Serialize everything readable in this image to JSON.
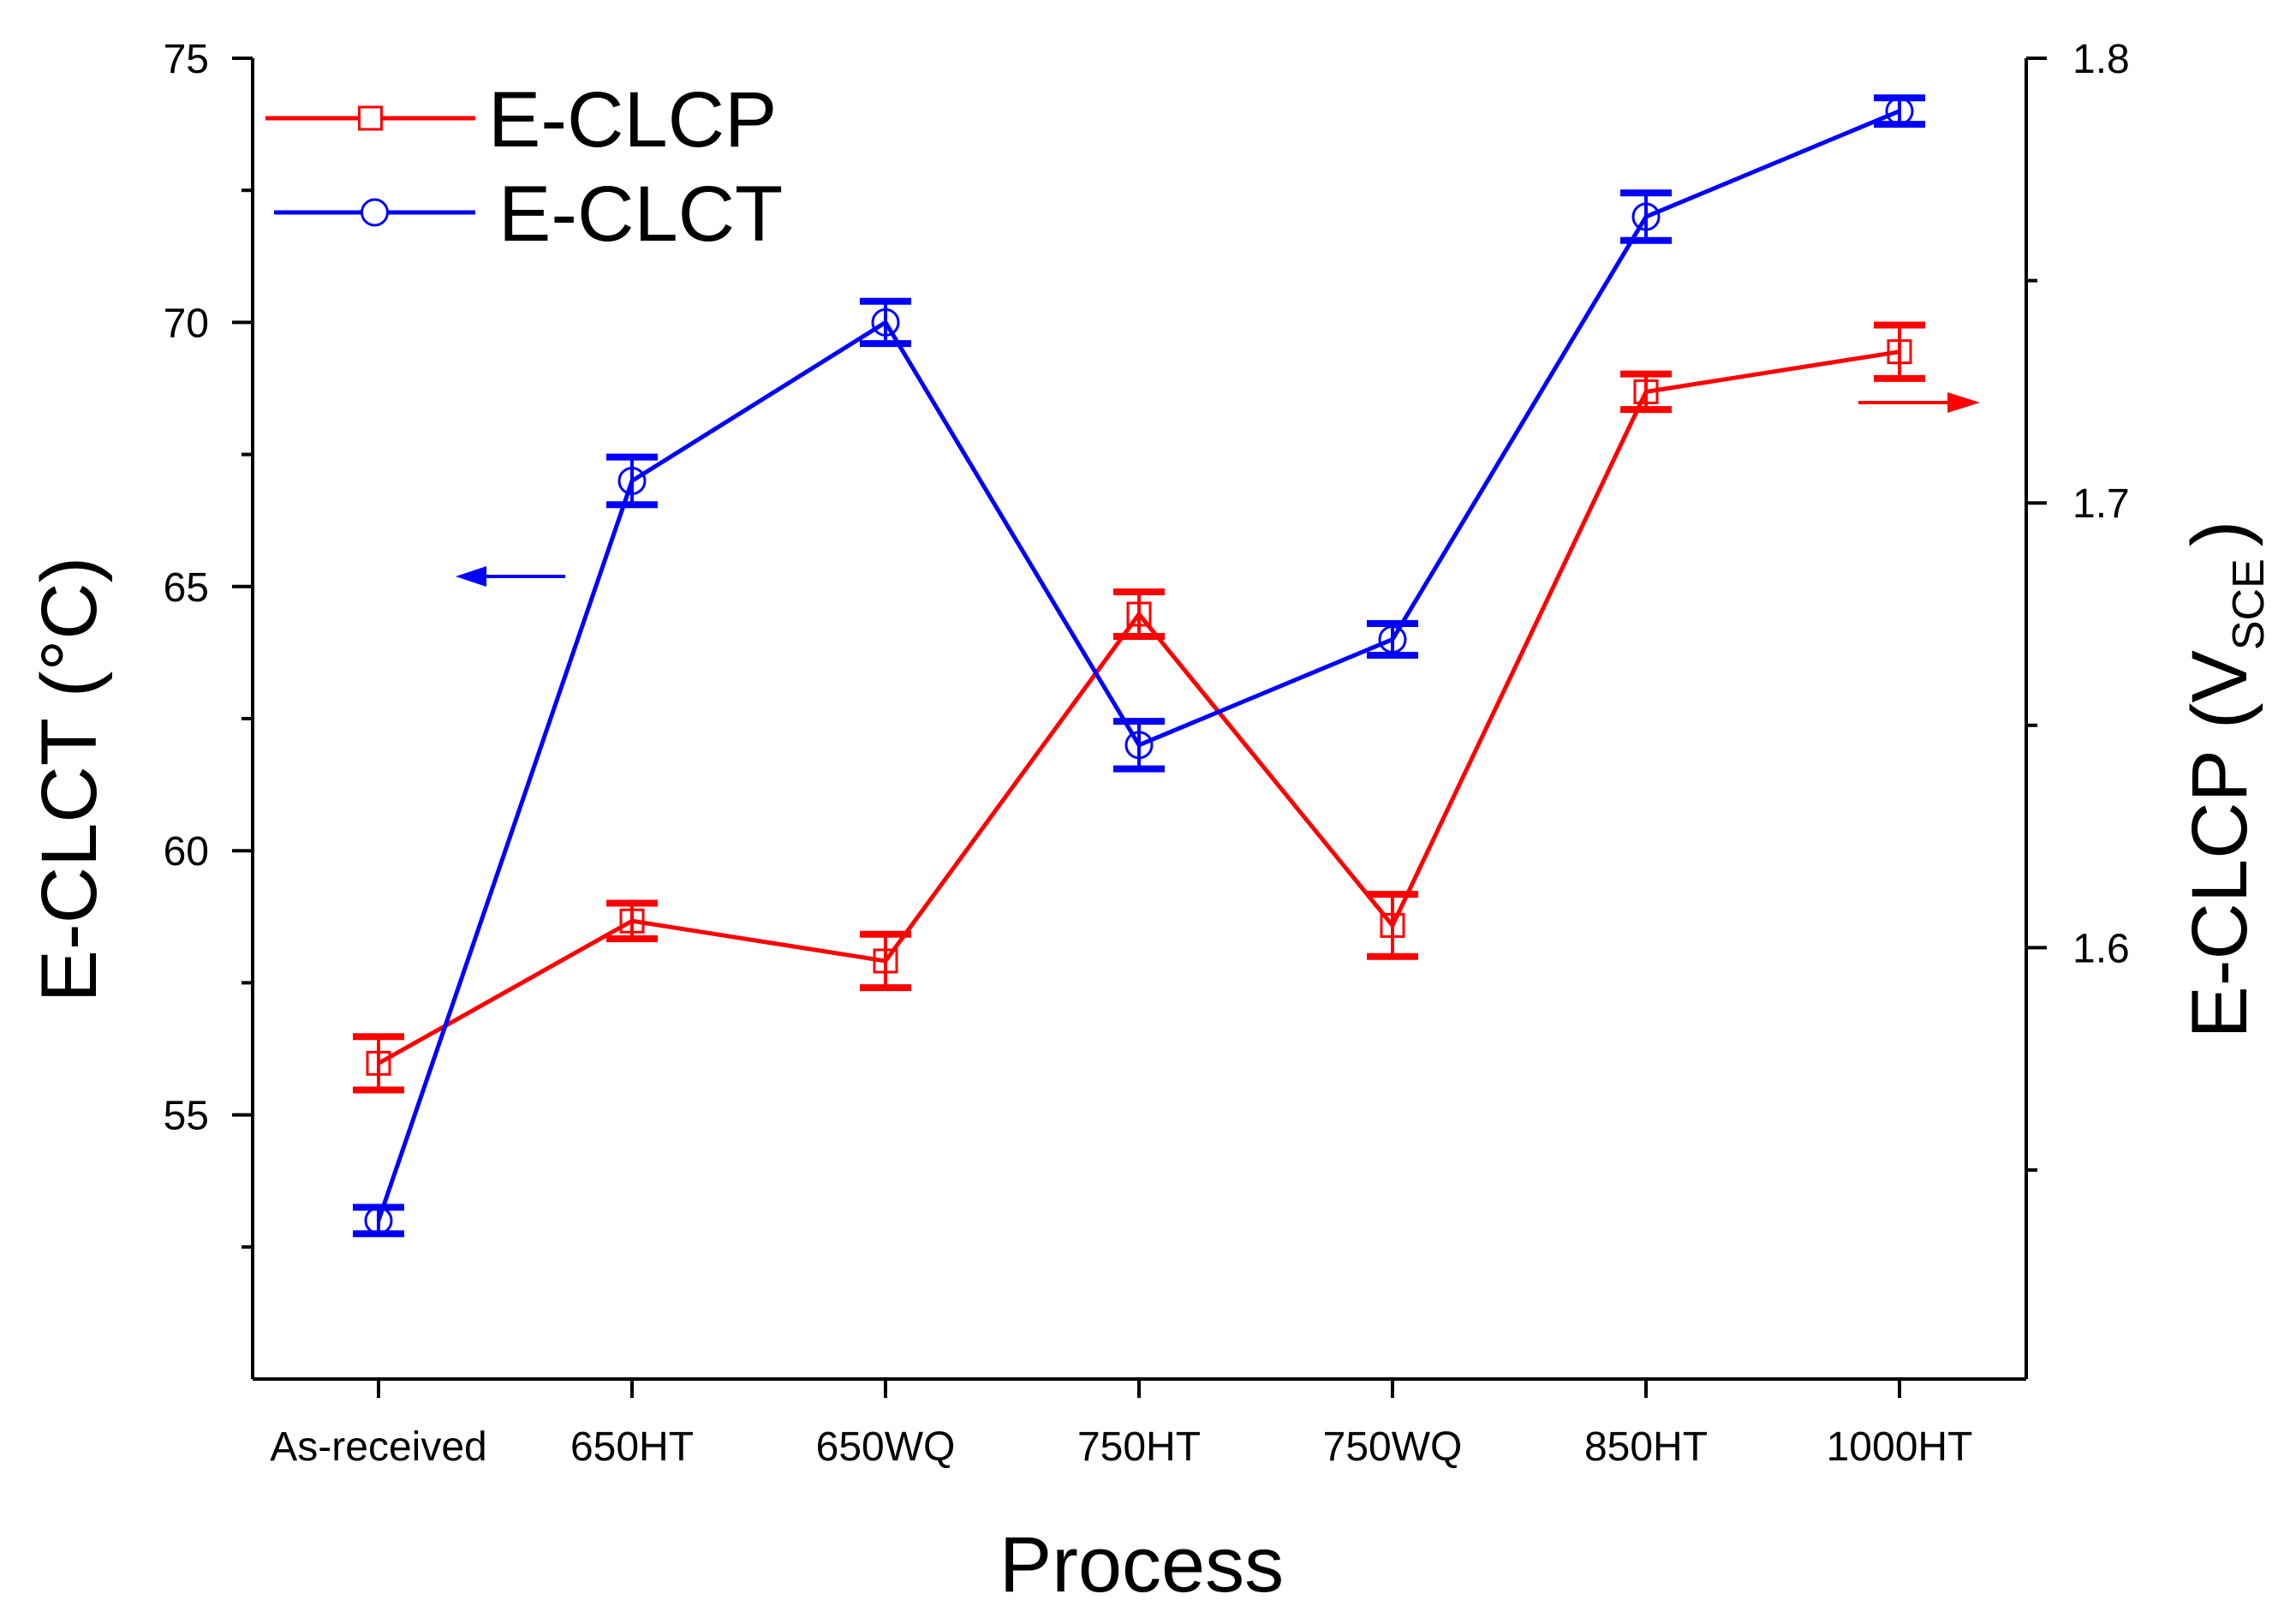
{
  "chart_data": {
    "type": "line",
    "categories": [
      "As-received",
      "650HT",
      "650WQ",
      "750HT",
      "750WQ",
      "850HT",
      "1000HT"
    ],
    "xlabel": "Process",
    "ylabel_left": "E-CLCT (°C)",
    "ylabel_right_main": "E-CLCP (V",
    "ylabel_right_sub": "SCE",
    "ylabel_right_close": ")",
    "y_left": {
      "lim": [
        50,
        75
      ],
      "ticks": [
        55,
        60,
        65,
        70,
        75
      ],
      "tick_labels": [
        "55",
        "60",
        "65",
        "70",
        "75"
      ]
    },
    "y_right": {
      "lim": [
        1.503,
        1.8
      ],
      "ticks": [
        1.6,
        1.7,
        1.8
      ],
      "tick_labels": [
        "1.6",
        "1.7",
        "1.8"
      ]
    },
    "series": [
      {
        "name": "E-CLCP",
        "axis": "right",
        "color": "#ff0000",
        "marker": "square",
        "values": [
          1.574,
          1.606,
          1.597,
          1.675,
          1.605,
          1.725,
          1.734
        ],
        "errors": [
          0.006,
          0.004,
          0.006,
          0.005,
          0.007,
          0.004,
          0.006
        ]
      },
      {
        "name": "E-CLCT",
        "axis": "left",
        "color": "#0000ff",
        "marker": "circle",
        "values": [
          53.0,
          67.0,
          70.0,
          62.0,
          64.0,
          72.0,
          74.0
        ],
        "errors": [
          0.25,
          0.45,
          0.4,
          0.45,
          0.3,
          0.45,
          0.25
        ]
      }
    ],
    "legend_position": "top-left",
    "grid": false
  }
}
